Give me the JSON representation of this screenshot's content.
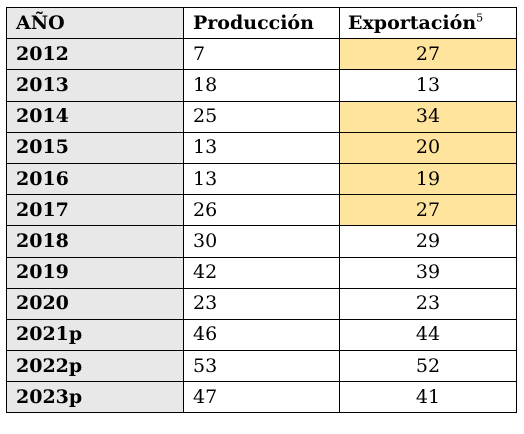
{
  "table": {
    "headers": {
      "year": "AÑO",
      "production": "Producción",
      "export": "Exportación",
      "export_footnote": "5"
    },
    "highlight_color": "#ffe49e",
    "rows": [
      {
        "year": "2012",
        "production": "7",
        "export": "27",
        "highlight": true
      },
      {
        "year": "2013",
        "production": "18",
        "export": "13",
        "highlight": false
      },
      {
        "year": "2014",
        "production": "25",
        "export": "34",
        "highlight": true
      },
      {
        "year": "2015",
        "production": "13",
        "export": "20",
        "highlight": true
      },
      {
        "year": "2016",
        "production": "13",
        "export": "19",
        "highlight": true
      },
      {
        "year": "2017",
        "production": "26",
        "export": "27",
        "highlight": true
      },
      {
        "year": "2018",
        "production": "30",
        "export": "29",
        "highlight": false
      },
      {
        "year": "2019",
        "production": "42",
        "export": "39",
        "highlight": false
      },
      {
        "year": "2020",
        "production": "23",
        "export": "23",
        "highlight": false
      },
      {
        "year": "2021p",
        "production": "46",
        "export": "44",
        "highlight": false
      },
      {
        "year": "2022p",
        "production": "53",
        "export": "52",
        "highlight": false
      },
      {
        "year": "2023p",
        "production": "47",
        "export": "41",
        "highlight": false
      }
    ]
  }
}
